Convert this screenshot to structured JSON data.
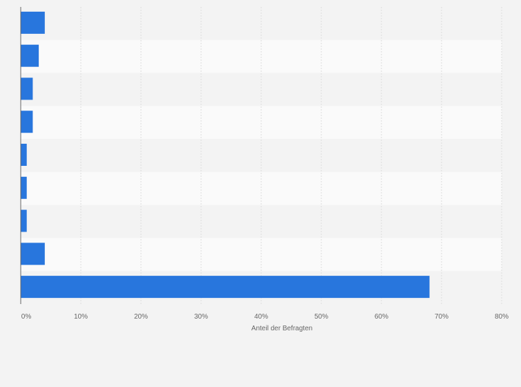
{
  "chart_data": {
    "type": "bar",
    "orientation": "horizontal",
    "categories": [
      "",
      "",
      "",
      "",
      "",
      "",
      "",
      "",
      ""
    ],
    "values": [
      4,
      3,
      2,
      2,
      1,
      1,
      1,
      4,
      68
    ],
    "xlabel": "Anteil der Befragten",
    "ylabel": "",
    "xlim": [
      0,
      80
    ],
    "ticks": [
      "0%",
      "10%",
      "20%",
      "30%",
      "40%",
      "50%",
      "60%",
      "70%",
      "80%"
    ],
    "grid": true,
    "bar_color": "#2876dd",
    "band_colors": [
      "#f3f3f3",
      "#fafafa"
    ],
    "gridline_color": "#dcdcdc"
  }
}
